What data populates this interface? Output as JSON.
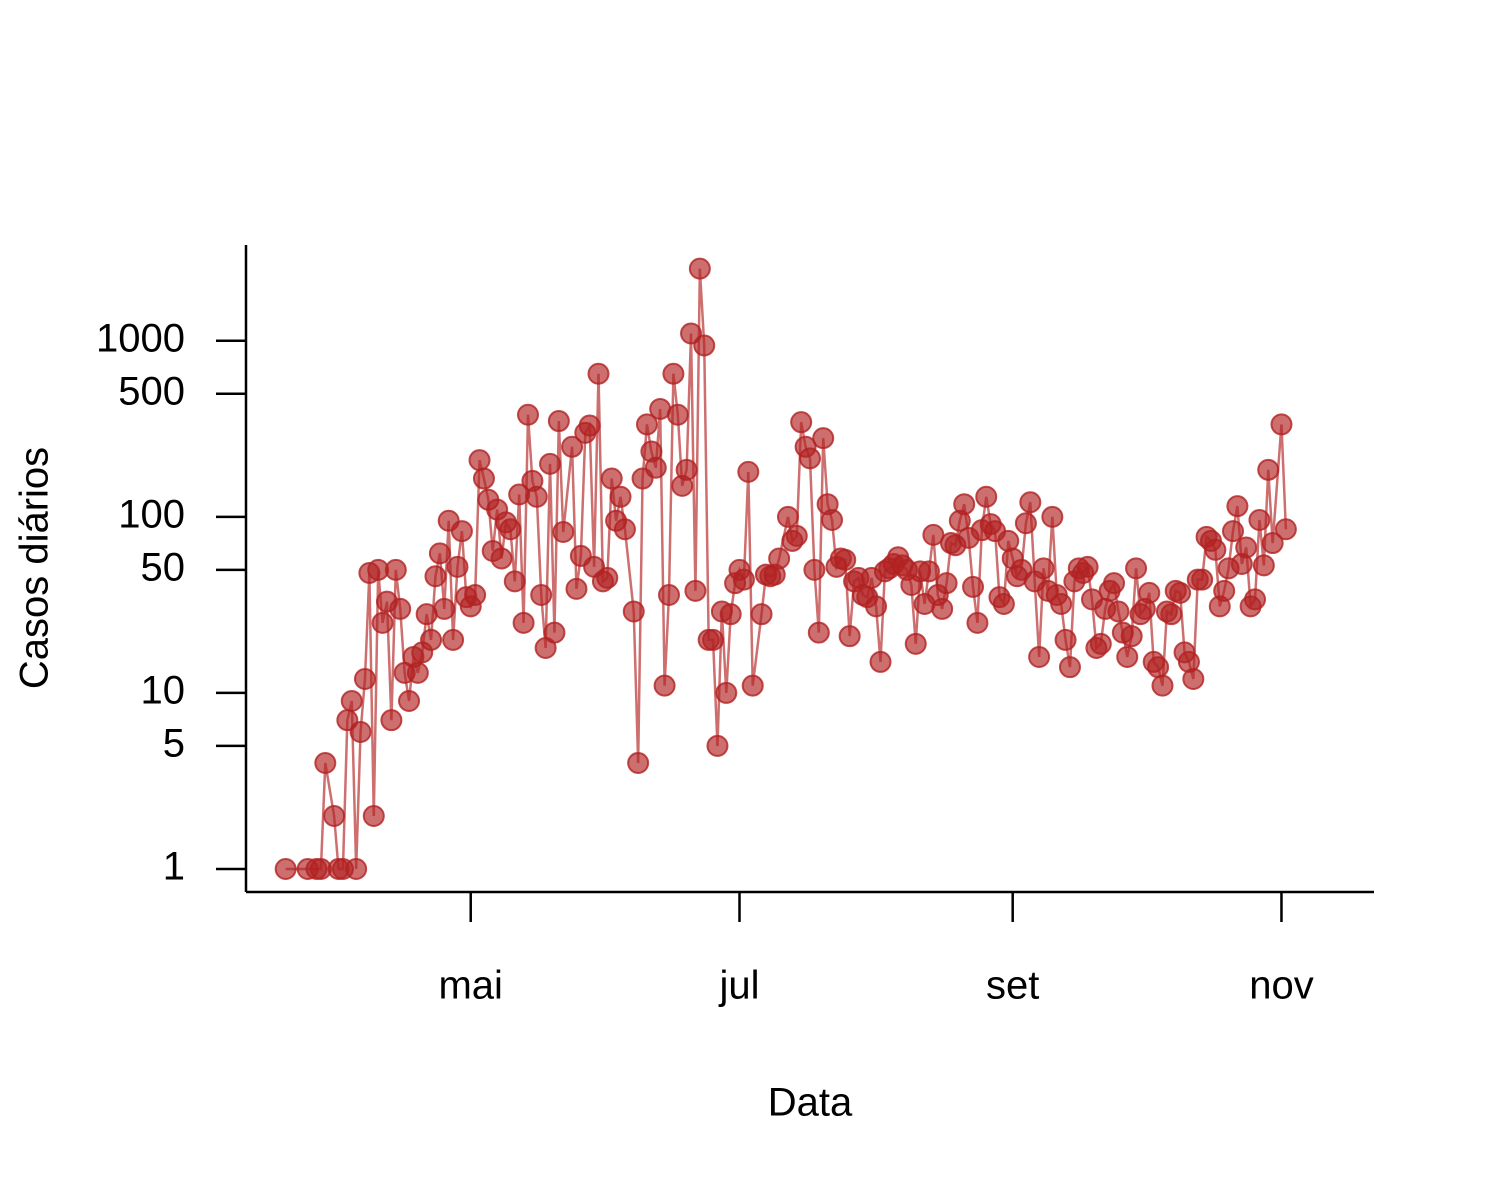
{
  "chart_data": {
    "type": "line",
    "xlabel": "Data",
    "ylabel": "Casos diários",
    "x": [
      79,
      84,
      86,
      87,
      88,
      90,
      91,
      92,
      93,
      94,
      95,
      96,
      97,
      98,
      99,
      100,
      101,
      102,
      103,
      104,
      105,
      106,
      107,
      108,
      109,
      110,
      111,
      112,
      113,
      114,
      115,
      116,
      117,
      118,
      119,
      120,
      121,
      122,
      123,
      124,
      125,
      126,
      127,
      128,
      129,
      130,
      131,
      132,
      133,
      134,
      135,
      136,
      137,
      138,
      139,
      140,
      141,
      142,
      144,
      145,
      146,
      147,
      148,
      149,
      150,
      151,
      152,
      153,
      154,
      155,
      156,
      158,
      159,
      160,
      161,
      162,
      163,
      164,
      165,
      166,
      167,
      168,
      169,
      170,
      171,
      172,
      173,
      174,
      175,
      176,
      177,
      178,
      179,
      180,
      181,
      182,
      183,
      184,
      185,
      187,
      188,
      189,
      190,
      191,
      193,
      194,
      195,
      196,
      197,
      198,
      199,
      200,
      201,
      202,
      203,
      204,
      205,
      206,
      207,
      208,
      209,
      210,
      211,
      212,
      213,
      214,
      215,
      216,
      217,
      218,
      219,
      220,
      221,
      222,
      223,
      224,
      225,
      226,
      227,
      228,
      229,
      230,
      231,
      232,
      233,
      234,
      235,
      236,
      237,
      238,
      239,
      240,
      241,
      242,
      243,
      244,
      245,
      246,
      247,
      248,
      249,
      250,
      251,
      252,
      253,
      254,
      255,
      256,
      257,
      258,
      259,
      260,
      261,
      262,
      263,
      264,
      265,
      266,
      267,
      268,
      269,
      270,
      271,
      272,
      273,
      274,
      275,
      276,
      277,
      278,
      279,
      280,
      281,
      282,
      283,
      284,
      285,
      286,
      287,
      288,
      289,
      290,
      291,
      292,
      293,
      294,
      295,
      296,
      297,
      298,
      299,
      300,
      301,
      302,
      303,
      305,
      306
    ],
    "series": [
      {
        "name": "Casos diários",
        "color": "#b22222",
        "values": [
          1,
          1,
          1,
          1,
          4,
          2,
          1,
          1,
          7,
          9,
          1,
          6,
          12,
          48,
          2,
          50,
          25,
          33,
          7,
          50,
          30,
          13,
          9,
          16,
          13,
          17,
          28,
          20,
          46,
          62,
          30,
          95,
          20,
          52,
          83,
          35,
          31,
          36,
          210,
          165,
          125,
          64,
          110,
          58,
          93,
          85,
          43,
          134,
          25,
          380,
          160,
          130,
          36,
          18,
          200,
          22,
          350,
          82,
          250,
          39,
          60,
          300,
          330,
          52,
          650,
          43,
          45,
          165,
          95,
          130,
          85,
          29,
          4,
          165,
          335,
          235,
          190,
          410,
          11,
          36,
          650,
          380,
          150,
          185,
          1100,
          38,
          2570,
          940,
          20,
          20,
          5,
          29,
          10,
          28,
          42,
          50,
          44,
          180,
          11,
          28,
          47,
          46,
          47,
          58,
          100,
          73,
          78,
          345,
          250,
          215,
          50,
          22,
          280,
          118,
          96,
          52,
          58,
          57,
          21,
          43,
          45,
          36,
          35,
          45,
          31,
          15,
          49,
          51,
          54,
          59,
          53,
          50,
          41,
          19,
          49,
          32,
          49,
          79,
          36,
          30,
          42,
          71,
          69,
          95,
          118,
          76,
          40,
          25,
          84,
          130,
          91,
          83,
          35,
          32,
          73,
          58,
          46,
          50,
          92,
          121,
          43,
          16,
          51,
          38,
          100,
          36,
          32,
          20,
          14,
          43,
          51,
          48,
          52,
          34,
          18,
          19,
          30,
          38,
          42,
          29,
          22,
          16,
          21,
          51,
          28,
          30,
          37,
          15,
          14,
          11,
          29,
          28,
          38,
          37,
          17,
          15,
          12,
          44,
          44,
          77,
          73,
          65,
          31,
          38,
          51,
          83,
          115,
          54,
          67,
          31,
          34,
          96,
          53,
          185,
          71,
          335,
          85
        ]
      }
    ],
    "xlim": [
      70,
      326
    ],
    "xticks": [
      {
        "value": 121,
        "label": "mai"
      },
      {
        "value": 182,
        "label": "jul"
      },
      {
        "value": 244,
        "label": "set"
      },
      {
        "value": 305,
        "label": "nov"
      }
    ],
    "ylim": [
      0.74,
      3500
    ],
    "yticks": [
      1,
      5,
      10,
      50,
      100,
      500,
      1000
    ],
    "ylog": true
  }
}
